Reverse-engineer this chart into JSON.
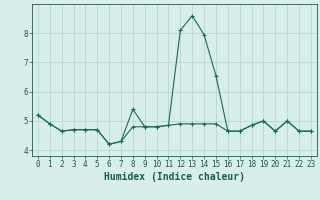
{
  "xlabel": "Humidex (Indice chaleur)",
  "background_color": "#d7eeea",
  "grid_color": "#b8d8d2",
  "line_color": "#1a6b5a",
  "marker": "+",
  "xlim": [
    -0.5,
    23.5
  ],
  "ylim": [
    3.8,
    9.0
  ],
  "yticks": [
    4,
    5,
    6,
    7,
    8
  ],
  "xticks": [
    0,
    1,
    2,
    3,
    4,
    5,
    6,
    7,
    8,
    9,
    10,
    11,
    12,
    13,
    14,
    15,
    16,
    17,
    18,
    19,
    20,
    21,
    22,
    23
  ],
  "series1_x": [
    0,
    1,
    2,
    3,
    4,
    5,
    6,
    7,
    8,
    9,
    10,
    11,
    12,
    13,
    14,
    15,
    16,
    17,
    18,
    19,
    20,
    21,
    22,
    23
  ],
  "series1_y": [
    5.2,
    4.9,
    4.65,
    4.7,
    4.7,
    4.7,
    4.2,
    4.3,
    5.4,
    4.8,
    4.8,
    4.85,
    8.1,
    8.6,
    7.95,
    6.55,
    4.65,
    4.65,
    4.85,
    5.0,
    4.65,
    5.0,
    4.65,
    4.65
  ],
  "series2_x": [
    0,
    1,
    2,
    3,
    4,
    5,
    6,
    7,
    8,
    9,
    10,
    11,
    12,
    13,
    14,
    15,
    16,
    17,
    18,
    19,
    20,
    21,
    22,
    23
  ],
  "series2_y": [
    5.2,
    4.9,
    4.65,
    4.7,
    4.7,
    4.7,
    4.2,
    4.3,
    4.8,
    4.8,
    4.8,
    4.85,
    4.9,
    4.9,
    4.9,
    4.9,
    4.65,
    4.65,
    4.85,
    5.0,
    4.65,
    5.0,
    4.65,
    4.65
  ],
  "font_color": "#1a5c50",
  "tick_fontsize": 5.5,
  "label_fontsize": 7
}
